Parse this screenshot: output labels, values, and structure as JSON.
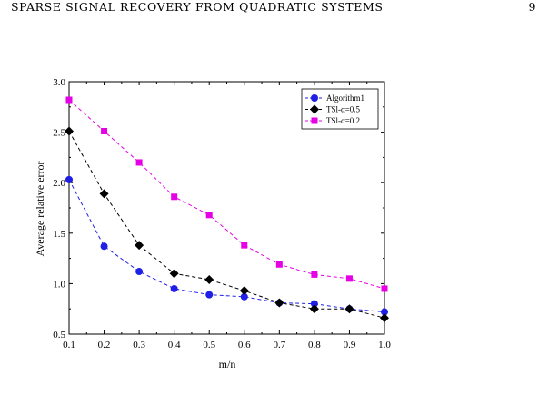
{
  "header": {
    "running_title": "SPARSE SIGNAL RECOVERY FROM QUADRATIC SYSTEMS",
    "page_number": "9"
  },
  "chart_data": {
    "type": "line",
    "xlabel": "m/n",
    "ylabel": "Average relative error",
    "xlim": [
      0.1,
      1.0
    ],
    "ylim": [
      0.5,
      3.0
    ],
    "x_ticks": [
      "0.1",
      "0.2",
      "0.3",
      "0.4",
      "0.5",
      "0.6",
      "0.7",
      "0.8",
      "0.9",
      "1.0"
    ],
    "y_ticks": [
      "0.5",
      "1.0",
      "1.5",
      "2.0",
      "2.5",
      "3.0"
    ],
    "grid": false,
    "legend_position": "top-right",
    "x": [
      0.1,
      0.2,
      0.3,
      0.4,
      0.5,
      0.6,
      0.7,
      0.8,
      0.9,
      1.0
    ],
    "series": [
      {
        "name": "Algorithm1",
        "color": "#1f1fe6",
        "marker": "circle",
        "values": [
          2.03,
          1.37,
          1.12,
          0.95,
          0.89,
          0.87,
          0.81,
          0.8,
          0.75,
          0.72
        ]
      },
      {
        "name": "TSl-α=0.5",
        "color": "#000000",
        "marker": "diamond",
        "values": [
          2.51,
          1.89,
          1.38,
          1.1,
          1.04,
          0.93,
          0.81,
          0.75,
          0.75,
          0.66
        ]
      },
      {
        "name": "TSl-α=0.2",
        "color": "#e600e6",
        "marker": "square",
        "values": [
          2.82,
          2.51,
          2.2,
          1.86,
          1.68,
          1.38,
          1.19,
          1.09,
          1.05,
          0.95
        ]
      }
    ]
  }
}
